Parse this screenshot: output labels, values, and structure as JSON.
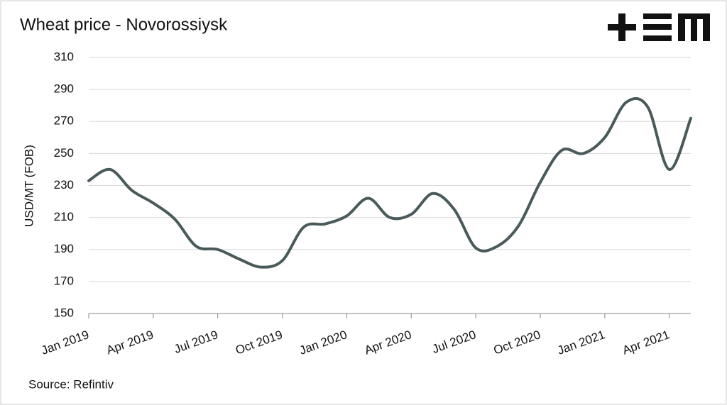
{
  "chart_data": {
    "type": "line",
    "title": "Wheat price - Novorossiysk",
    "y_label": "USD/MT (FOB)",
    "source": "Source: Refintiv",
    "x": [
      "2019-01",
      "2019-02",
      "2019-03",
      "2019-04",
      "2019-05",
      "2019-06",
      "2019-07",
      "2019-08",
      "2019-09",
      "2019-10",
      "2019-11",
      "2019-12",
      "2020-01",
      "2020-02",
      "2020-03",
      "2020-04",
      "2020-05",
      "2020-06",
      "2020-07",
      "2020-08",
      "2020-09",
      "2020-10",
      "2020-11",
      "2020-12",
      "2021-01",
      "2021-02",
      "2021-03",
      "2021-04",
      "2021-05"
    ],
    "values": [
      233,
      240,
      227,
      219,
      209,
      192,
      190,
      184,
      179,
      183,
      204,
      206,
      211,
      222,
      210,
      212,
      225,
      215,
      191,
      192,
      205,
      232,
      252,
      250,
      260,
      282,
      279,
      240,
      272
    ],
    "color": "#4a5a5a",
    "xlim": [
      "2019-01",
      "2021-05"
    ],
    "xticks": [
      {
        "value": "2019-01",
        "label": "Jan 2019"
      },
      {
        "value": "2019-04",
        "label": "Apr 2019"
      },
      {
        "value": "2019-07",
        "label": "Jul 2019"
      },
      {
        "value": "2019-10",
        "label": "Oct 2019"
      },
      {
        "value": "2020-01",
        "label": "Jan 2020"
      },
      {
        "value": "2020-04",
        "label": "Apr 2020"
      },
      {
        "value": "2020-07",
        "label": "Jul 2020"
      },
      {
        "value": "2020-10",
        "label": "Oct 2020"
      },
      {
        "value": "2021-01",
        "label": "Jan 2021"
      },
      {
        "value": "2021-04",
        "label": "Apr 2021"
      }
    ],
    "ylim": [
      150,
      310
    ],
    "yticks": [
      150,
      170,
      190,
      210,
      230,
      250,
      270,
      290,
      310
    ],
    "grid": true
  }
}
